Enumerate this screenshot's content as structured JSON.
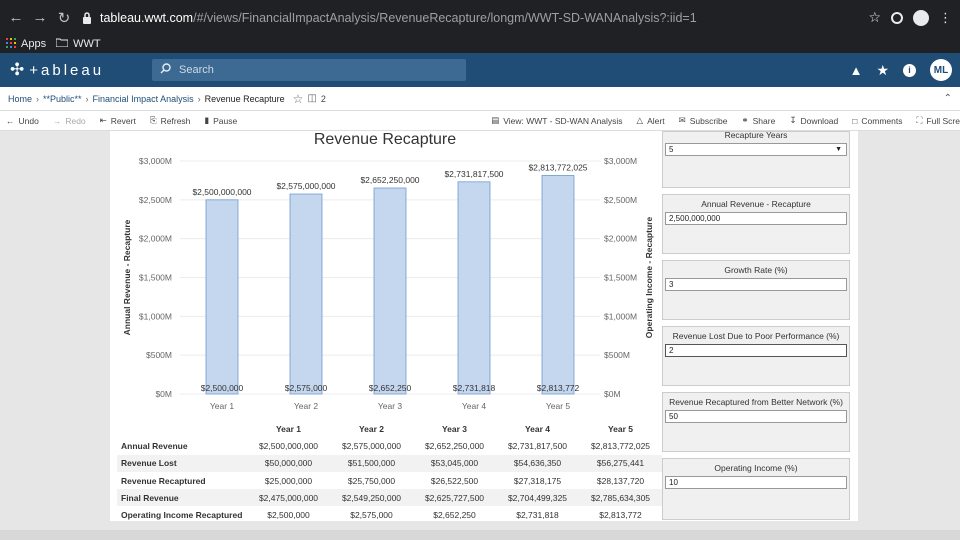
{
  "browser": {
    "url_domain": "tableau.wwt.com",
    "url_path": "/#/views/FinancialImpactAnalysis/RevenueRecapture/longm/WWT-SD-WANAnalysis?:iid=1",
    "bookmarks": [
      "Apps",
      "WWT"
    ]
  },
  "header": {
    "logo": "+ableau",
    "search_placeholder": "Search",
    "user_initials": "ML"
  },
  "breadcrumb": {
    "items": [
      "Home",
      "**Public**",
      "Financial Impact Analysis"
    ],
    "current": "Revenue Recapture",
    "version_count": "2"
  },
  "toolbar": {
    "undo": "Undo",
    "redo": "Redo",
    "revert": "Revert",
    "refresh": "Refresh",
    "pause": "Pause",
    "view": "View: WWT - SD-WAN Analysis",
    "alert": "Alert",
    "subscribe": "Subscribe",
    "share": "Share",
    "download": "Download",
    "comments": "Comments",
    "fullscreen": "Full Scre"
  },
  "chart_data": {
    "type": "bar",
    "title": "Revenue Recapture",
    "ylabel": "Annual Revenue - Recapture",
    "ylabel_right": "Operating Income - Recapture",
    "categories": [
      "Year 1",
      "Year 2",
      "Year 3",
      "Year 4",
      "Year 5"
    ],
    "values": [
      2500000000,
      2575000000,
      2652250000,
      2731817500,
      2813772025
    ],
    "top_labels": [
      "$2,500,000,000",
      "$2,575,000,000",
      "$2,652,250,000",
      "$2,731,817,500",
      "$2,813,772,025"
    ],
    "operating_income_values": [
      2500000,
      2575000,
      2652250,
      2731818,
      2813772
    ],
    "bottom_labels": [
      "$2,500,000",
      "$2,575,000",
      "$2,652,250",
      "$2,731,818",
      "$2,813,772"
    ],
    "yticks": [
      0,
      500,
      1000,
      1500,
      2000,
      2500,
      3000
    ],
    "ytick_labels": [
      "$0M",
      "$500M",
      "$1,000M",
      "$1,500M",
      "$2,000M",
      "$2,500M",
      "$3,000M"
    ],
    "ylim": [
      0,
      3000000000
    ],
    "bar_color": "#c5d7ef",
    "bar_stroke": "#6f9bd1",
    "grid": true
  },
  "table": {
    "columns": [
      "Year 1",
      "Year 2",
      "Year 3",
      "Year 4",
      "Year 5"
    ],
    "rows": [
      {
        "label": "Annual Revenue",
        "values": [
          "$2,500,000,000",
          "$2,575,000,000",
          "$2,652,250,000",
          "$2,731,817,500",
          "$2,813,772,025"
        ]
      },
      {
        "label": "Revenue Lost",
        "values": [
          "$50,000,000",
          "$51,500,000",
          "$53,045,000",
          "$54,636,350",
          "$56,275,441"
        ]
      },
      {
        "label": "Revenue Recaptured",
        "values": [
          "$25,000,000",
          "$25,750,000",
          "$26,522,500",
          "$27,318,175",
          "$28,137,720"
        ]
      },
      {
        "label": "Final Revenue",
        "values": [
          "$2,475,000,000",
          "$2,549,250,000",
          "$2,625,727,500",
          "$2,704,499,325",
          "$2,785,634,305"
        ]
      },
      {
        "label": "Operating Income Recaptured",
        "values": [
          "$2,500,000",
          "$2,575,000",
          "$2,652,250",
          "$2,731,818",
          "$2,813,772"
        ]
      }
    ]
  },
  "params": [
    {
      "label": "Recapture Years",
      "value": "5",
      "dropdown": true
    },
    {
      "label": "Annual Revenue - Recapture",
      "value": "2,500,000,000"
    },
    {
      "label": "Growth Rate (%)",
      "value": "3"
    },
    {
      "label": "Revenue Lost Due to Poor Performance (%)",
      "value": "2"
    },
    {
      "label": "Revenue Recaptured from Better Network (%)",
      "value": "50"
    },
    {
      "label": "Operating Income (%)",
      "value": "10"
    }
  ]
}
